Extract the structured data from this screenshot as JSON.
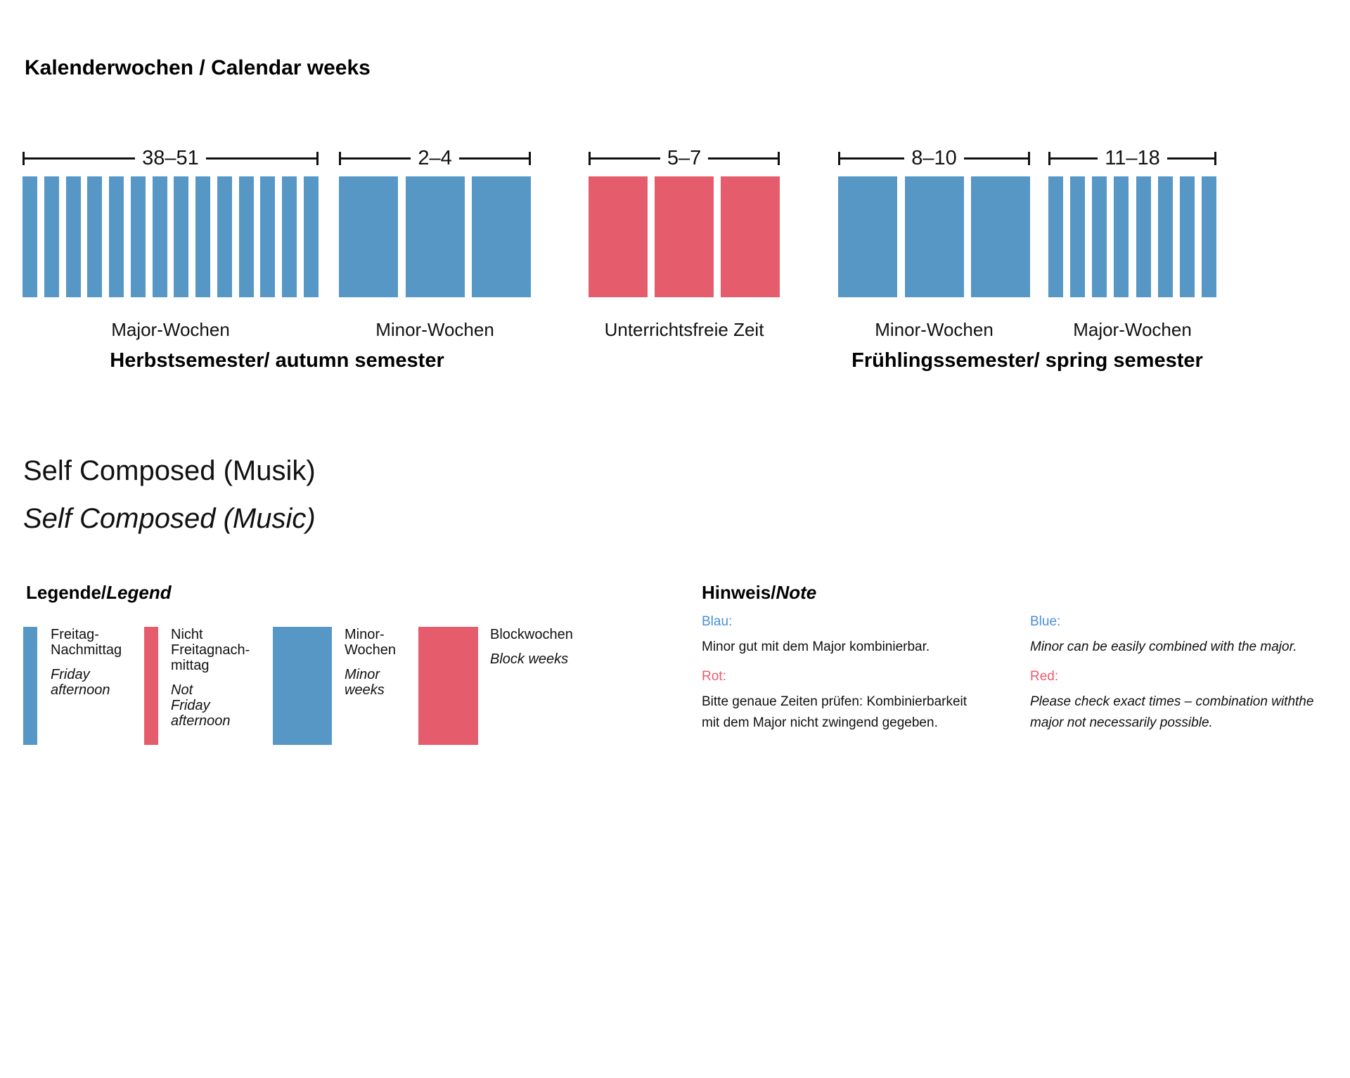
{
  "title": "Kalenderwochen / Calendar weeks",
  "chart": {
    "groups": [
      {
        "weeks_range": "38–51",
        "label": "Major-Wochen",
        "bar_count": 14,
        "color": "blue",
        "bar_style": "narrow"
      },
      {
        "weeks_range": "2–4",
        "label": "Minor-Wochen",
        "bar_count": 3,
        "color": "blue",
        "bar_style": "wide"
      },
      {
        "weeks_range": "5–7",
        "label": "Unterrichtsfreie Zeit",
        "bar_count": 3,
        "color": "red",
        "bar_style": "wide"
      },
      {
        "weeks_range": "8–10",
        "label": "Minor-Wochen",
        "bar_count": 3,
        "color": "blue",
        "bar_style": "wide"
      },
      {
        "weeks_range": "11–18",
        "label": "Major-Wochen",
        "bar_count": 8,
        "color": "blue",
        "bar_style": "narrow"
      }
    ],
    "semesters": [
      {
        "label": "Herbstsemester/ autumn semester"
      },
      {
        "label": "Frühlingssemester/ spring semester"
      }
    ]
  },
  "program": {
    "title_de": "Self Composed (Musik)",
    "title_en": "Self Composed (Music)"
  },
  "legend": {
    "title_de": "Legende/",
    "title_en": "Legend",
    "items": [
      {
        "swatch": "blue-narrow",
        "de_lines": [
          "Freitag-",
          "Nachmittag"
        ],
        "en_lines": [
          "Friday",
          "afternoon"
        ]
      },
      {
        "swatch": "red-narrow",
        "de_lines": [
          "Nicht",
          "Freitagnach-",
          "mittag"
        ],
        "en_lines": [
          "Not",
          "Friday",
          "afternoon"
        ]
      },
      {
        "swatch": "blue-wide",
        "de_lines": [
          "Minor-",
          "Wochen"
        ],
        "en_lines": [
          "Minor",
          "weeks"
        ]
      },
      {
        "swatch": "red-wide",
        "de_lines": [
          "Blockwochen"
        ],
        "en_lines": [
          "Block weeks"
        ]
      }
    ]
  },
  "notes": {
    "title_de": "Hinweis/",
    "title_en": "Note",
    "de": {
      "blue_label": "Blau:",
      "blue_text": "Minor gut mit dem Major kombinierbar.",
      "red_label": "Rot:",
      "red_text": "Bitte genaue Zeiten prüfen: Kombinierbarkeit mit dem Major nicht zwingend gegeben."
    },
    "en": {
      "blue_label": "Blue:",
      "blue_text": "Minor can be easily combined with the major.",
      "red_label": "Red:",
      "red_text": "Please check exact times – combination withthe major not necessarily possible."
    }
  },
  "colors": {
    "bar_blue": "#5697c6",
    "bar_red": "#e55d6c",
    "note_blue": "#4a90d2",
    "note_red": "#ed5a6c"
  }
}
